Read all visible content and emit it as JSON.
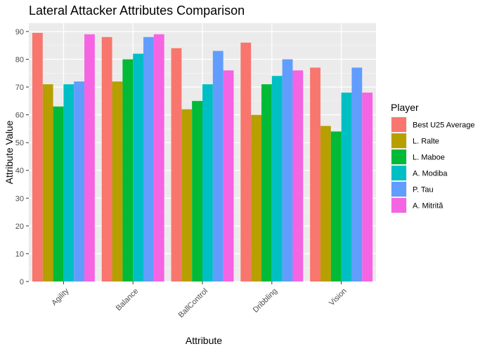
{
  "chart_data": {
    "type": "bar",
    "title": "Lateral Attacker Attributes Comparison",
    "xlabel": "Attribute",
    "ylabel": "Attribute Value",
    "categories": [
      "Agility",
      "Balance",
      "BallControl",
      "Dribbling",
      "Vision"
    ],
    "ylim": [
      0,
      93
    ],
    "yticks": [
      "0",
      "10",
      "20",
      "30",
      "40",
      "50",
      "60",
      "70",
      "80",
      "90"
    ],
    "grid": true,
    "legend": {
      "title": "Player",
      "position": "right"
    },
    "series": [
      {
        "name": "Best U25 Average",
        "color": "#F8766D",
        "values": [
          89.5,
          88,
          84,
          86,
          77
        ]
      },
      {
        "name": "L. Ralte",
        "color": "#B79F00",
        "values": [
          71,
          72,
          62,
          60,
          56
        ]
      },
      {
        "name": "L. Maboe",
        "color": "#00BA38",
        "values": [
          63,
          80,
          65,
          71,
          54
        ]
      },
      {
        "name": "A. Modiba",
        "color": "#00BFC4",
        "values": [
          71,
          82,
          71,
          74,
          68
        ]
      },
      {
        "name": "P. Tau",
        "color": "#619CFF",
        "values": [
          72,
          88,
          83,
          80,
          77
        ]
      },
      {
        "name": "A. Mitrită",
        "color": "#F564E3",
        "values": [
          89,
          89,
          76,
          76,
          68
        ]
      }
    ]
  }
}
